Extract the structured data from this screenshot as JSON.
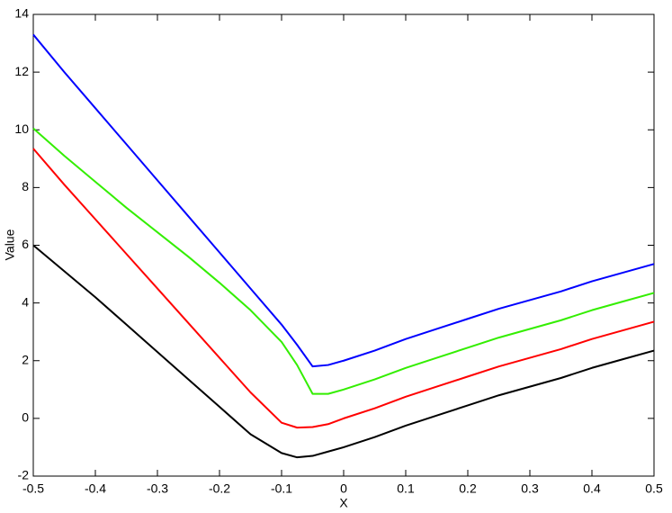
{
  "chart_data": {
    "type": "line",
    "xlabel": "X",
    "ylabel": "Value",
    "x": [
      -0.5,
      -0.45,
      -0.4,
      -0.35,
      -0.3,
      -0.25,
      -0.2,
      -0.15,
      -0.1,
      -0.075,
      -0.05,
      -0.025,
      0,
      0.05,
      0.1,
      0.15,
      0.2,
      0.25,
      0.3,
      0.35,
      0.4,
      0.45,
      0.5
    ],
    "series": [
      {
        "color": "#0000ff",
        "values": [
          13.3,
          12.0,
          10.75,
          9.5,
          8.25,
          7.0,
          5.75,
          4.5,
          3.25,
          2.55,
          1.8,
          1.85,
          2.0,
          2.35,
          2.75,
          3.1,
          3.45,
          3.8,
          4.1,
          4.4,
          4.75,
          5.05,
          5.35
        ]
      },
      {
        "color": "#33ee00",
        "values": [
          10.05,
          9.1,
          8.2,
          7.3,
          6.45,
          5.6,
          4.7,
          3.75,
          2.65,
          1.85,
          0.85,
          0.85,
          1.0,
          1.35,
          1.75,
          2.1,
          2.45,
          2.8,
          3.1,
          3.4,
          3.75,
          4.05,
          4.35
        ]
      },
      {
        "color": "#ff0000",
        "values": [
          9.35,
          8.1,
          6.9,
          5.7,
          4.5,
          3.3,
          2.1,
          0.9,
          -0.15,
          -0.32,
          -0.3,
          -0.2,
          0.0,
          0.35,
          0.75,
          1.1,
          1.45,
          1.8,
          2.1,
          2.4,
          2.75,
          3.05,
          3.35
        ]
      },
      {
        "color": "#000000",
        "values": [
          6.0,
          5.1,
          4.2,
          3.25,
          2.3,
          1.35,
          0.4,
          -0.55,
          -1.2,
          -1.35,
          -1.3,
          -1.15,
          -1.0,
          -0.65,
          -0.25,
          0.1,
          0.45,
          0.8,
          1.1,
          1.4,
          1.75,
          2.05,
          2.35
        ]
      }
    ],
    "xlim": [
      -0.5,
      0.5
    ],
    "xticks": [
      -0.5,
      -0.4,
      -0.3,
      -0.2,
      -0.1,
      0,
      0.1,
      0.2,
      0.3,
      0.4,
      0.5
    ],
    "ylim": [
      -2,
      14
    ],
    "yticks": [
      -2,
      0,
      2,
      4,
      6,
      8,
      10,
      12,
      14
    ]
  }
}
